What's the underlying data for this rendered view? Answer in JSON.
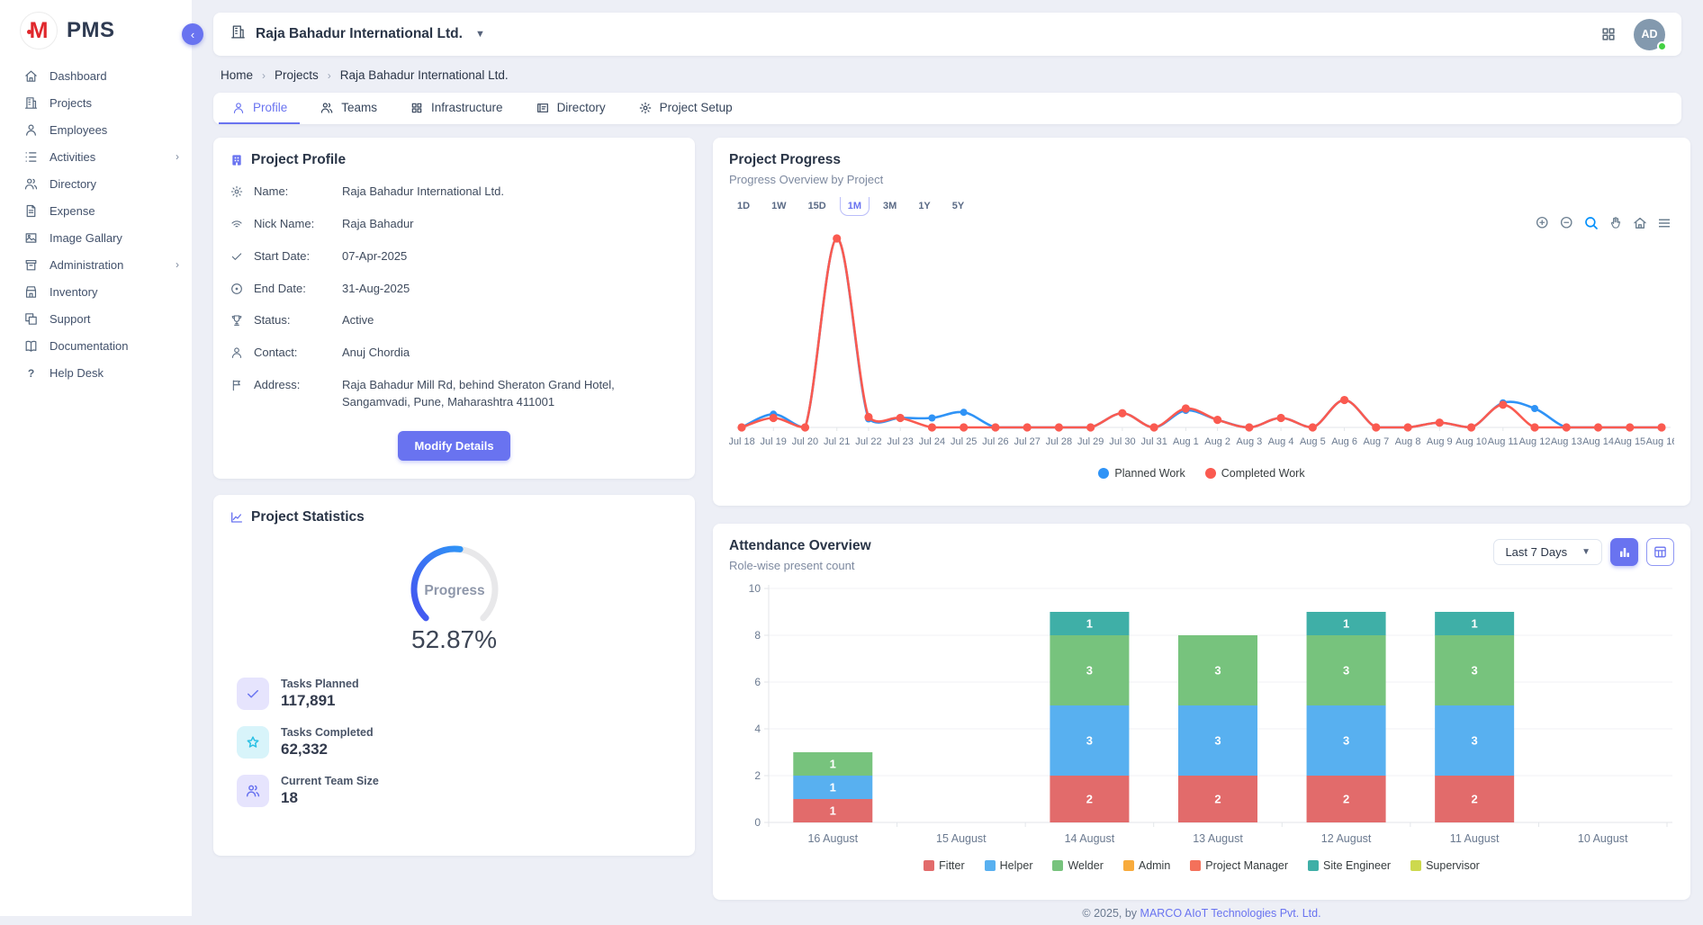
{
  "app": {
    "logo_text": "PMS",
    "brand_color": "#e0262b",
    "accent_color": "#6973f0"
  },
  "sidebar": {
    "items": [
      {
        "label": "Dashboard",
        "icon": "home-icon",
        "has_submenu": false
      },
      {
        "label": "Projects",
        "icon": "building-icon",
        "has_submenu": false
      },
      {
        "label": "Employees",
        "icon": "person-icon",
        "has_submenu": false
      },
      {
        "label": "Activities",
        "icon": "list-icon",
        "has_submenu": true
      },
      {
        "label": "Directory",
        "icon": "people-icon",
        "has_submenu": false
      },
      {
        "label": "Expense",
        "icon": "receipt-icon",
        "has_submenu": false
      },
      {
        "label": "Image Gallary",
        "icon": "image-icon",
        "has_submenu": false
      },
      {
        "label": "Administration",
        "icon": "archive-icon",
        "has_submenu": true
      },
      {
        "label": "Inventory",
        "icon": "store-icon",
        "has_submenu": false
      },
      {
        "label": "Support",
        "icon": "copy-icon",
        "has_submenu": false
      },
      {
        "label": "Documentation",
        "icon": "book-icon",
        "has_submenu": false
      },
      {
        "label": "Help Desk",
        "icon": "question-icon",
        "has_submenu": false
      }
    ]
  },
  "header": {
    "company_selector": "Raja Bahadur International Ltd.",
    "company_icon": "building-icon",
    "apps_icon": "grid-icon",
    "avatar_initials": "AD",
    "status": "online"
  },
  "breadcrumb": {
    "items": [
      "Home",
      "Projects",
      "Raja Bahadur International Ltd."
    ]
  },
  "tabs": [
    {
      "label": "Profile",
      "icon": "person-icon",
      "active": true
    },
    {
      "label": "Teams",
      "icon": "people-icon",
      "active": false
    },
    {
      "label": "Infrastructure",
      "icon": "grid-icon",
      "active": false
    },
    {
      "label": "Directory",
      "icon": "card-icon",
      "active": false
    },
    {
      "label": "Project Setup",
      "icon": "gear-icon",
      "active": false
    }
  ],
  "profile_card": {
    "title": "Project Profile",
    "title_icon": "building-icon",
    "fields": [
      {
        "icon": "gear-icon",
        "label": "Name:",
        "value": "Raja Bahadur International Ltd."
      },
      {
        "icon": "signal-icon",
        "label": "Nick Name:",
        "value": "Raja Bahadur"
      },
      {
        "icon": "check-icon",
        "label": "Start Date:",
        "value": "07-Apr-2025"
      },
      {
        "icon": "target-icon",
        "label": "End Date:",
        "value": "31-Aug-2025"
      },
      {
        "icon": "trophy-icon",
        "label": "Status:",
        "value": "Active"
      },
      {
        "icon": "person-icon",
        "label": "Contact:",
        "value": "Anuj Chordia"
      },
      {
        "icon": "flag-icon",
        "label": "Address:",
        "value": "Raja Bahadur Mill Rd, behind Sheraton Grand Hotel, Sangamvadi, Pune, Maharashtra 411001"
      }
    ],
    "modify_button": "Modify Details"
  },
  "stats_card": {
    "title": "Project Statistics",
    "title_icon": "chart-icon",
    "gauge": {
      "label": "Progress",
      "value_text": "52.87%",
      "percent": 52.87,
      "track_color": "#e8e8ea",
      "bar_colors": [
        "#4553f0",
        "#2f93f6"
      ]
    },
    "stats": [
      {
        "icon": "check-icon",
        "icon_bg": "#e6e4fd",
        "icon_color": "#6973f0",
        "label": "Tasks Planned",
        "value": "117,891"
      },
      {
        "icon": "star-icon",
        "icon_bg": "#d8f4fa",
        "icon_color": "#2bc0e4",
        "label": "Tasks Completed",
        "value": "62,332"
      },
      {
        "icon": "people-icon",
        "icon_bg": "#e6e4fd",
        "icon_color": "#6973f0",
        "label": "Current Team Size",
        "value": "18"
      }
    ]
  },
  "progress_card": {
    "title": "Project Progress",
    "subtitle": "Progress Overview by Project",
    "ranges": [
      "1D",
      "1W",
      "15D",
      "1M",
      "3M",
      "1Y",
      "5Y"
    ],
    "active_range": "1M",
    "toolbar_icons": [
      "zoom-in-icon",
      "zoom-out-icon",
      "selection-zoom-icon",
      "pan-icon",
      "home-icon",
      "menu-icon"
    ]
  },
  "attendance_card": {
    "title": "Attendance Overview",
    "subtitle": "Role-wise present count",
    "filter_value": "Last 7 Days",
    "view_buttons": [
      "bar-chart-icon",
      "table-icon"
    ],
    "active_view": "bar-chart-icon"
  },
  "footer": {
    "prefix": "© 2025, by ",
    "link": "MARCO AIoT Technologies Pvt. Ltd."
  },
  "chart_data": [
    {
      "type": "line",
      "title": "Project Progress",
      "x": [
        "Jul 18",
        "Jul 19",
        "Jul 20",
        "Jul 21",
        "Jul 22",
        "Jul 23",
        "Jul 24",
        "Jul 25",
        "Jul 26",
        "Jul 27",
        "Jul 28",
        "Jul 29",
        "Jul 30",
        "Jul 31",
        "Aug 1",
        "Aug 2",
        "Aug 3",
        "Aug 4",
        "Aug 5",
        "Aug 6",
        "Aug 7",
        "Aug 8",
        "Aug 9",
        "Aug 10",
        "Aug 11",
        "Aug 12",
        "Aug 13",
        "Aug 14",
        "Aug 15",
        "Aug 16"
      ],
      "series": [
        {
          "name": "Planned Work",
          "color": "#2f93f6",
          "values": [
            0,
            1.4,
            0,
            20,
            0.9,
            1,
            1,
            1.6,
            0,
            0,
            0,
            0,
            1.5,
            0,
            1.8,
            0.8,
            0,
            1,
            0,
            2.9,
            0,
            0,
            0.5,
            0,
            2.6,
            2,
            0,
            0,
            0,
            0
          ]
        },
        {
          "name": "Completed Work",
          "color": "#fa5a50",
          "values": [
            0,
            1.0,
            0,
            20,
            1.1,
            1,
            0,
            0,
            0,
            0,
            0,
            0,
            1.5,
            0,
            2.0,
            0.8,
            0,
            1,
            0,
            2.9,
            0,
            0,
            0.5,
            0,
            2.4,
            0,
            0,
            0,
            0,
            0
          ]
        }
      ],
      "ylim": [
        0,
        21
      ],
      "y_axis_labels": false,
      "grid": false,
      "legend_position": "bottom",
      "marker_shape": "circle"
    },
    {
      "type": "bar",
      "stacked": true,
      "title": "Attendance Overview",
      "categories": [
        "16 August",
        "15 August",
        "14 August",
        "13 August",
        "12 August",
        "11 August",
        "10 August"
      ],
      "series": [
        {
          "name": "Fitter",
          "color": "#e26b6b",
          "values": [
            1,
            0,
            2,
            2,
            2,
            2,
            0
          ]
        },
        {
          "name": "Helper",
          "color": "#58b0f0",
          "values": [
            1,
            0,
            3,
            3,
            3,
            3,
            0
          ]
        },
        {
          "name": "Welder",
          "color": "#77c37d",
          "values": [
            1,
            0,
            3,
            3,
            3,
            3,
            0
          ]
        },
        {
          "name": "Admin",
          "color": "#f8ab3c",
          "values": [
            0,
            0,
            0,
            0,
            0,
            0,
            0
          ]
        },
        {
          "name": "Project Manager",
          "color": "#f4715b",
          "values": [
            0,
            0,
            0,
            0,
            0,
            0,
            0
          ]
        },
        {
          "name": "Site Engineer",
          "color": "#3fafa7",
          "values": [
            0,
            0,
            1,
            0,
            1,
            1,
            0
          ]
        },
        {
          "name": "Supervisor",
          "color": "#cdd94e",
          "values": [
            0,
            0,
            0,
            0,
            0,
            0,
            0
          ]
        }
      ],
      "ylim": [
        0,
        10
      ],
      "yticks": [
        0,
        2,
        4,
        6,
        8,
        10
      ],
      "grid": true,
      "legend_position": "bottom",
      "data_labels": true
    }
  ]
}
